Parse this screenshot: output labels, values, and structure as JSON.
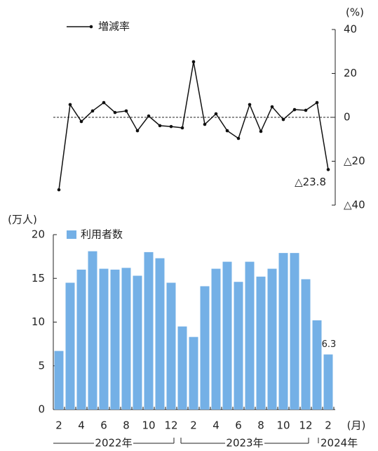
{
  "chart_data": [
    {
      "type": "line",
      "unit_label": "(%)",
      "axis_side": "right",
      "ylim": [
        -40,
        40
      ],
      "yticks": [
        40,
        20,
        0,
        {
          "value": -20,
          "label": "△20"
        },
        {
          "value": -40,
          "label": "△40"
        }
      ],
      "series": [
        {
          "name": "増減率",
          "color": "#111111",
          "values": [
            -33,
            5.8,
            -1.9,
            2.9,
            6.7,
            2.2,
            2.9,
            -6.1,
            0.6,
            -3.8,
            -4.2,
            -4.8,
            25.3,
            -3.2,
            1.6,
            -6.1,
            -9.6,
            5.8,
            -6.4,
            4.8,
            -1.0,
            3.5,
            3.2,
            6.7,
            -23.8
          ],
          "value_labels": [
            null,
            null,
            null,
            null,
            null,
            null,
            null,
            null,
            null,
            null,
            null,
            null,
            null,
            null,
            null,
            null,
            null,
            null,
            null,
            null,
            null,
            null,
            null,
            null,
            "△23.8"
          ]
        }
      ],
      "reference_line": 0
    },
    {
      "type": "bar",
      "unit_label": "(万人)",
      "x_unit_label": "(月)",
      "categories": [
        "2",
        null,
        "4",
        null,
        "6",
        null,
        "8",
        null,
        "10",
        null,
        "12",
        null,
        "2",
        null,
        "4",
        null,
        "6",
        null,
        "8",
        null,
        "10",
        null,
        "12",
        null,
        "2"
      ],
      "x_groups": [
        "2022年",
        "2023年",
        "2024年"
      ],
      "ylim": [
        0,
        20
      ],
      "yticks": [
        0,
        5,
        10,
        15,
        20
      ],
      "series": [
        {
          "name": "利用者数",
          "color": "#74b0e6",
          "values": [
            6.7,
            14.5,
            16.0,
            18.1,
            16.1,
            16.0,
            16.2,
            15.3,
            18.0,
            17.3,
            14.5,
            9.5,
            8.3,
            14.1,
            16.1,
            16.9,
            14.6,
            16.9,
            15.2,
            16.1,
            17.9,
            17.9,
            14.9,
            10.2,
            6.3
          ],
          "value_labels": [
            null,
            null,
            null,
            null,
            null,
            null,
            null,
            null,
            null,
            null,
            null,
            null,
            null,
            null,
            null,
            null,
            null,
            null,
            null,
            null,
            null,
            null,
            null,
            null,
            "6.3"
          ]
        }
      ]
    }
  ]
}
